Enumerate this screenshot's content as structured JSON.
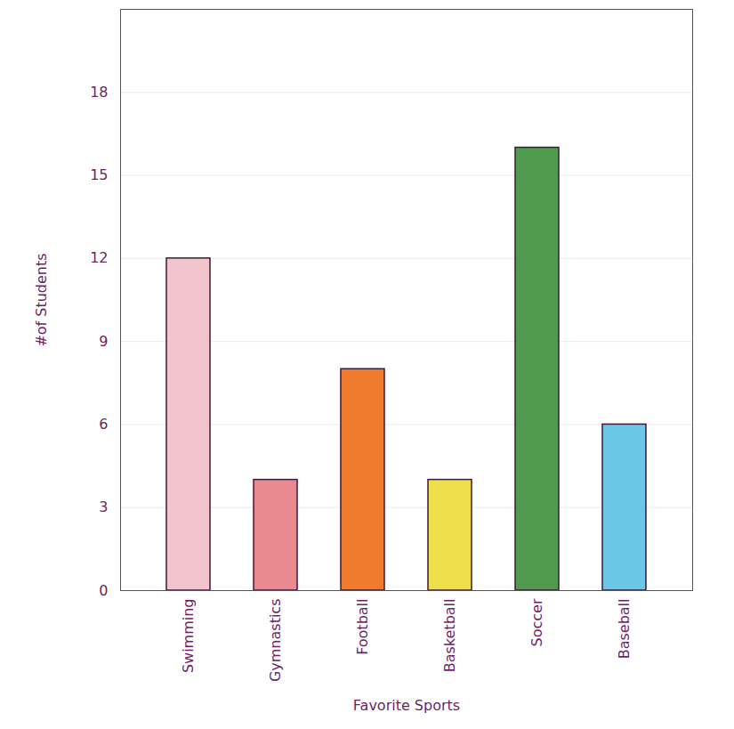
{
  "chart_data": {
    "type": "bar",
    "x_label": "Favorite Sports",
    "y_label": "#of Students",
    "categories": [
      "Swimming",
      "Gymnastics",
      "Football",
      "Basketball",
      "Soccer",
      "Baseball"
    ],
    "values": [
      12,
      4,
      8,
      4,
      16,
      6
    ],
    "colors": [
      "#f2c4cc",
      "#e98a90",
      "#f07b2c",
      "#eee04a",
      "#4f9a4c",
      "#6cc6e6"
    ],
    "ylim": [
      0,
      21
    ],
    "yticks": [
      0,
      3,
      6,
      9,
      12,
      15,
      18
    ],
    "grid": true
  }
}
